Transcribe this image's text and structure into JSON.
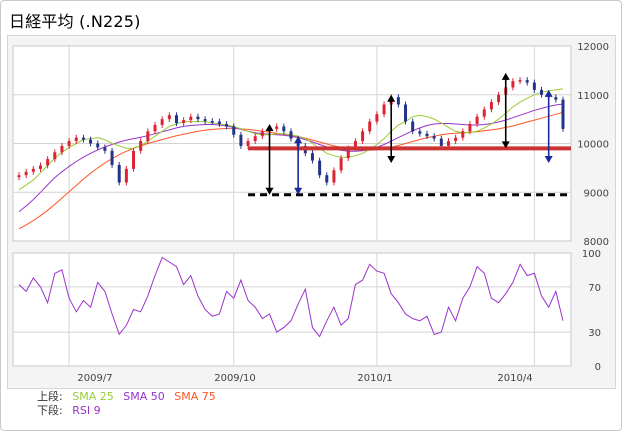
{
  "header": {
    "title": "日経平均 (.N225)"
  },
  "legend": {
    "upper_label": "上段:",
    "lower_label": "下段:",
    "sma25": "SMA 25",
    "sma50": "SMA 50",
    "sma75": "SMA 75",
    "rsi9": "RSI 9"
  },
  "colors": {
    "sma25": "#99cc33",
    "sma50": "#9933cc",
    "sma75": "#ff5522",
    "rsi": "#9933cc",
    "candle_up": "#dd2233",
    "candle_down": "#223388",
    "support_line": "#cc3333",
    "dashed_line": "#000000",
    "arrow_black": "#000000",
    "arrow_blue": "#1a2a99"
  },
  "chart_data": [
    {
      "type": "candlestick",
      "series_name": "日経平均",
      "ylim": [
        8000,
        12000
      ],
      "y_ticks": [
        "12000",
        "11000",
        "10000",
        "9000",
        "8000"
      ],
      "x_labels": [
        "2009/7",
        "2009/10",
        "2010/1",
        "2010/4"
      ],
      "close": [
        9350,
        9420,
        9480,
        9550,
        9680,
        9820,
        9950,
        10050,
        10120,
        10080,
        10000,
        9920,
        9850,
        9560,
        9200,
        9480,
        9850,
        10050,
        10250,
        10380,
        10500,
        10580,
        10420,
        10480,
        10550,
        10500,
        10460,
        10450,
        10400,
        10350,
        10180,
        9950,
        10050,
        10150,
        10250,
        10300,
        10350,
        10250,
        10100,
        9950,
        9800,
        9650,
        9350,
        9200,
        9450,
        9700,
        9900,
        10050,
        10250,
        10450,
        10600,
        10800,
        10950,
        10800,
        10450,
        10250,
        10200,
        10150,
        10100,
        9950,
        10050,
        10120,
        10250,
        10400,
        10550,
        10700,
        10850,
        11000,
        11150,
        11280,
        11300,
        11250,
        11100,
        11000,
        10950,
        10900,
        10300
      ],
      "sma25": [
        9050,
        9150,
        9250,
        9400,
        9550,
        9700,
        9820,
        9920,
        10000,
        10080,
        10100,
        10120,
        10080,
        10000,
        9950,
        9900,
        9900,
        9950,
        10050,
        10150,
        10250,
        10350,
        10400,
        10450,
        10450,
        10450,
        10450,
        10420,
        10400,
        10380,
        10350,
        10300,
        10250,
        10200,
        10180,
        10180,
        10200,
        10200,
        10180,
        10150,
        10100,
        10000,
        9900,
        9800,
        9750,
        9720,
        9720,
        9750,
        9800,
        9880,
        9980,
        10100,
        10250,
        10380,
        10450,
        10550,
        10580,
        10550,
        10500,
        10420,
        10330,
        10250,
        10220,
        10220,
        10250,
        10320,
        10400,
        10500,
        10620,
        10750,
        10850,
        10930,
        11000,
        11050,
        11080,
        11100,
        11120
      ],
      "sma50": [
        8600,
        8720,
        8850,
        9000,
        9150,
        9300,
        9420,
        9530,
        9630,
        9720,
        9800,
        9870,
        9930,
        9980,
        10030,
        10070,
        10100,
        10130,
        10160,
        10200,
        10240,
        10280,
        10320,
        10350,
        10370,
        10380,
        10390,
        10390,
        10380,
        10360,
        10330,
        10290,
        10250,
        10220,
        10200,
        10190,
        10180,
        10170,
        10150,
        10120,
        10080,
        10030,
        9980,
        9930,
        9890,
        9860,
        9840,
        9840,
        9850,
        9880,
        9920,
        9980,
        10050,
        10120,
        10190,
        10260,
        10320,
        10370,
        10400,
        10410,
        10410,
        10400,
        10390,
        10380,
        10380,
        10390,
        10410,
        10440,
        10480,
        10530,
        10580,
        10630,
        10680,
        10720,
        10760,
        10790,
        10810
      ],
      "sma75": [
        8250,
        8330,
        8420,
        8520,
        8630,
        8750,
        8880,
        9010,
        9140,
        9270,
        9390,
        9500,
        9600,
        9690,
        9770,
        9840,
        9900,
        9950,
        10000,
        10040,
        10080,
        10120,
        10160,
        10190,
        10220,
        10250,
        10270,
        10290,
        10300,
        10310,
        10310,
        10300,
        10290,
        10270,
        10250,
        10230,
        10210,
        10190,
        10170,
        10140,
        10110,
        10070,
        10030,
        9990,
        9950,
        9920,
        9890,
        9870,
        9860,
        9860,
        9870,
        9890,
        9920,
        9960,
        10000,
        10040,
        10080,
        10120,
        10150,
        10180,
        10200,
        10210,
        10220,
        10230,
        10240,
        10260,
        10280,
        10300,
        10330,
        10360,
        10400,
        10440,
        10480,
        10520,
        10560,
        10600,
        10640
      ]
    },
    {
      "type": "line",
      "series_name": "RSI 9",
      "ylim": [
        0,
        100
      ],
      "y_ticks": [
        "100",
        "70",
        "30",
        "0"
      ],
      "values": [
        72,
        66,
        78,
        70,
        56,
        82,
        85,
        60,
        48,
        58,
        52,
        74,
        66,
        46,
        28,
        36,
        50,
        48,
        62,
        80,
        96,
        92,
        88,
        72,
        80,
        62,
        50,
        44,
        46,
        66,
        60,
        76,
        58,
        52,
        42,
        46,
        30,
        34,
        40,
        55,
        68,
        34,
        26,
        40,
        52,
        36,
        42,
        72,
        76,
        90,
        84,
        82,
        64,
        56,
        46,
        42,
        40,
        44,
        28,
        30,
        52,
        40,
        60,
        70,
        88,
        82,
        60,
        56,
        64,
        74,
        90,
        80,
        82,
        62,
        52,
        66,
        40
      ],
      "levels": [
        70,
        30
      ]
    }
  ]
}
